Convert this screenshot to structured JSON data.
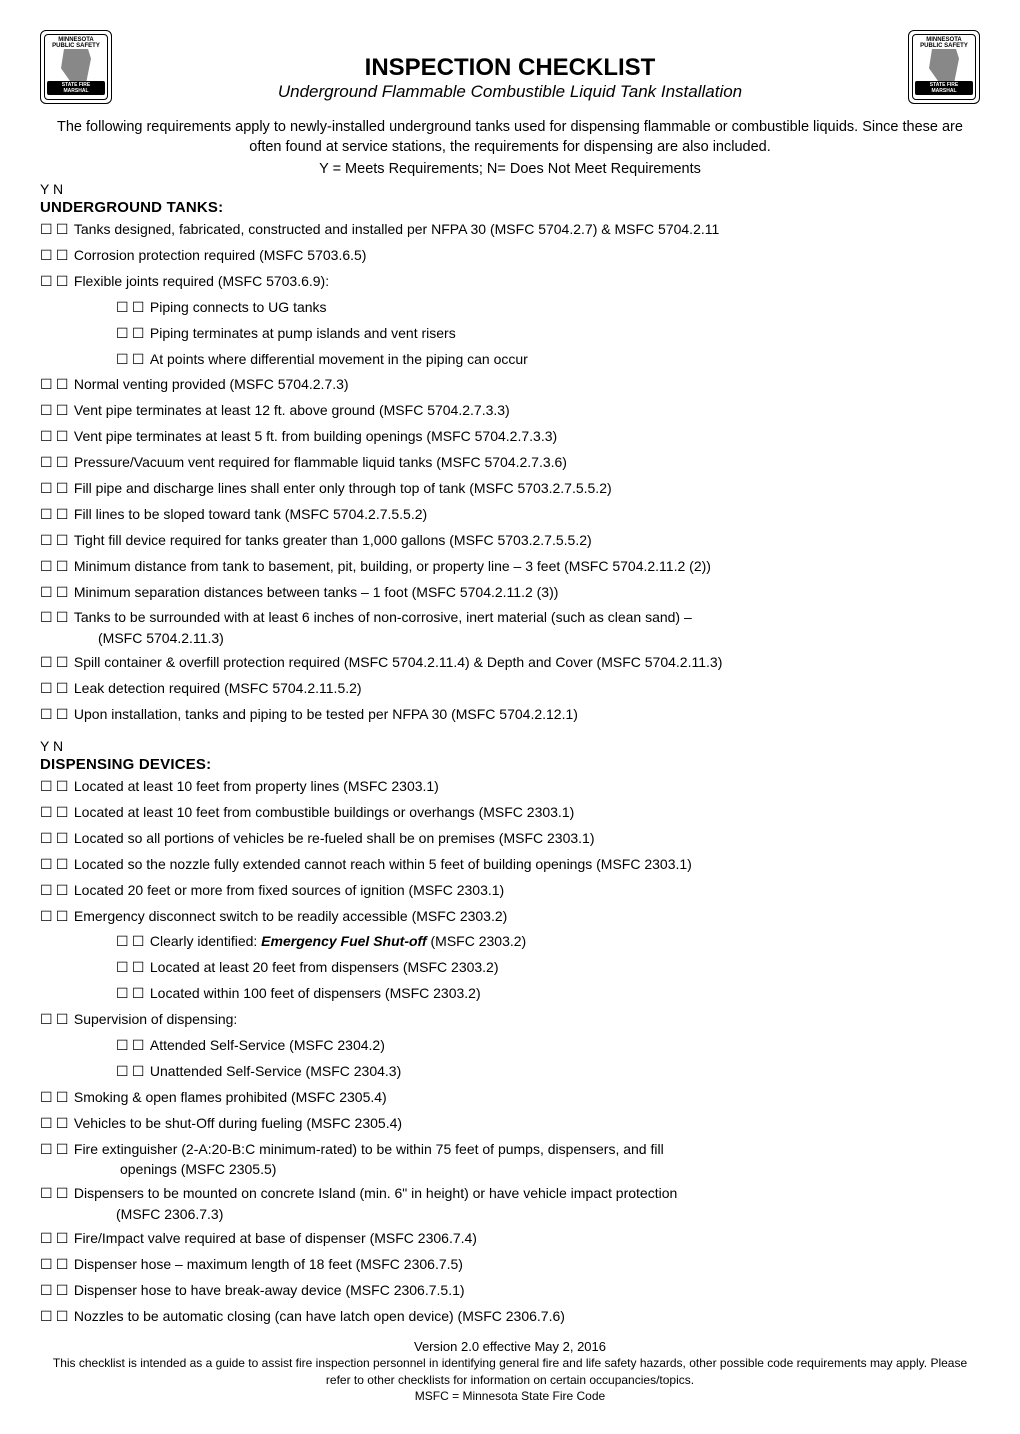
{
  "logo": {
    "top_line1": "MINNESOTA",
    "top_line2": "PUBLIC SAFETY",
    "banner": "STATE FIRE MARSHAL"
  },
  "title": {
    "main": "INSPECTION CHECKLIST",
    "sub": "Underground Flammable Combustible Liquid Tank Installation"
  },
  "intro": "The following requirements apply to newly-installed underground tanks used for dispensing flammable or combustible liquids. Since these are often found at service stations, the requirements for dispensing are also included.",
  "key": "Y = Meets Requirements; N= Does Not Meet Requirements",
  "yn_header": "Y   N",
  "box_glyph": "☐",
  "sections": [
    {
      "heading": "UNDERGROUND TANKS:",
      "items": [
        {
          "text": "Tanks designed, fabricated, constructed and installed per NFPA 30 (MSFC 5704.2.7) & MSFC 5704.2.11"
        },
        {
          "text": "Corrosion protection required (MSFC 5703.6.5)"
        },
        {
          "text": "Flexible joints required (MSFC 5703.6.9):"
        },
        {
          "text": "Piping connects to UG tanks",
          "indent": 1
        },
        {
          "text": "Piping terminates at pump islands and vent risers",
          "indent": 1
        },
        {
          "text": "At points where differential movement in the piping can occur",
          "indent": 1
        },
        {
          "text": "Normal venting provided (MSFC 5704.2.7.3)"
        },
        {
          "text": "Vent pipe terminates at least 12 ft. above ground (MSFC 5704.2.7.3.3)"
        },
        {
          "text": "Vent pipe terminates at least 5 ft. from building openings (MSFC 5704.2.7.3.3)"
        },
        {
          "text": "Pressure/Vacuum vent required for flammable liquid tanks (MSFC 5704.2.7.3.6)"
        },
        {
          "text": "Fill pipe and discharge lines shall enter only through top of tank (MSFC 5703.2.7.5.5.2)"
        },
        {
          "text": "Fill lines to be sloped toward tank (MSFC 5704.2.7.5.5.2)"
        },
        {
          "text": "Tight fill device required for tanks greater than 1,000 gallons (MSFC 5703.2.7.5.5.2)"
        },
        {
          "text": "Minimum distance from tank to basement, pit, building, or property line – 3 feet (MSFC 5704.2.11.2 (2))"
        },
        {
          "text": "Minimum separation distances between tanks – 1 foot (MSFC 5704.2.11.2 (3))"
        },
        {
          "text": "Tanks to be surrounded with at least 6 inches of non-corrosive, inert material (such as clean sand) –",
          "cont": "(MSFC 5704.2.11.3)"
        },
        {
          "text": "Spill container & overfill protection required (MSFC 5704.2.11.4) & Depth and Cover (MSFC 5704.2.11.3)"
        },
        {
          "text": "Leak detection required (MSFC 5704.2.11.5.2)"
        },
        {
          "text": "Upon installation, tanks and piping to be tested per NFPA 30 (MSFC 5704.2.12.1)"
        }
      ]
    },
    {
      "heading": "DISPENSING DEVICES:",
      "items": [
        {
          "text": "Located at least 10 feet from property lines (MSFC 2303.1)"
        },
        {
          "text": "Located at least 10 feet from combustible buildings or overhangs (MSFC 2303.1)"
        },
        {
          "text": "Located so all portions of vehicles be re-fueled shall be on premises (MSFC 2303.1)"
        },
        {
          "text": "Located so the nozzle fully extended cannot reach within 5 feet of building openings (MSFC 2303.1)"
        },
        {
          "text": "Located 20 feet or more from fixed sources of ignition (MSFC 2303.1)"
        },
        {
          "text": "Emergency disconnect switch to be readily accessible (MSFC 2303.2)"
        },
        {
          "text_pre": "Clearly identified:  ",
          "em": "Emergency Fuel Shut-off",
          "text_post": "  (MSFC 2303.2)",
          "indent": 1
        },
        {
          "text": "Located at least 20 feet from dispensers (MSFC 2303.2)",
          "indent": 1
        },
        {
          "text": "Located within 100 feet of dispensers (MSFC 2303.2)",
          "indent": 1
        },
        {
          "text": "Supervision of dispensing:"
        },
        {
          "text": " Attended Self-Service (MSFC 2304.2)",
          "indent": 1
        },
        {
          "text": "Unattended Self-Service (MSFC 2304.3)",
          "indent": 1
        },
        {
          "text": "Smoking & open flames prohibited (MSFC 2305.4)"
        },
        {
          "text": "Vehicles to be shut-Off during fueling (MSFC 2305.4)"
        },
        {
          "text": "Fire extinguisher (2-A:20-B:C minimum-rated) to be within 75 feet of pumps, dispensers, and fill",
          "cont": "openings (MSFC 2305.5)",
          "cont_pad": 22
        },
        {
          "text": "Dispensers to be mounted on concrete Island (min. 6\" in height) or have vehicle impact protection",
          "cont": " (MSFC 2306.7.3)",
          "cont_pad": 18
        },
        {
          "text": "Fire/Impact valve required at base of dispenser (MSFC 2306.7.4)"
        },
        {
          "text": "Dispenser hose – maximum length of 18 feet (MSFC 2306.7.5)"
        },
        {
          "text": "Dispenser hose to have break-away device (MSFC 2306.7.5.1)"
        },
        {
          "text": "Nozzles to be automatic closing (can have latch open device) (MSFC 2306.7.6)"
        }
      ]
    }
  ],
  "footer": {
    "version": "Version 2.0 effective May 2, 2016",
    "disclaimer": "This checklist is intended as a guide to assist fire inspection personnel in identifying general fire and life safety hazards, other possible code requirements may apply. Please refer to other checklists for information on certain occupancies/topics.",
    "abbrev": "MSFC = Minnesota State Fire Code"
  }
}
